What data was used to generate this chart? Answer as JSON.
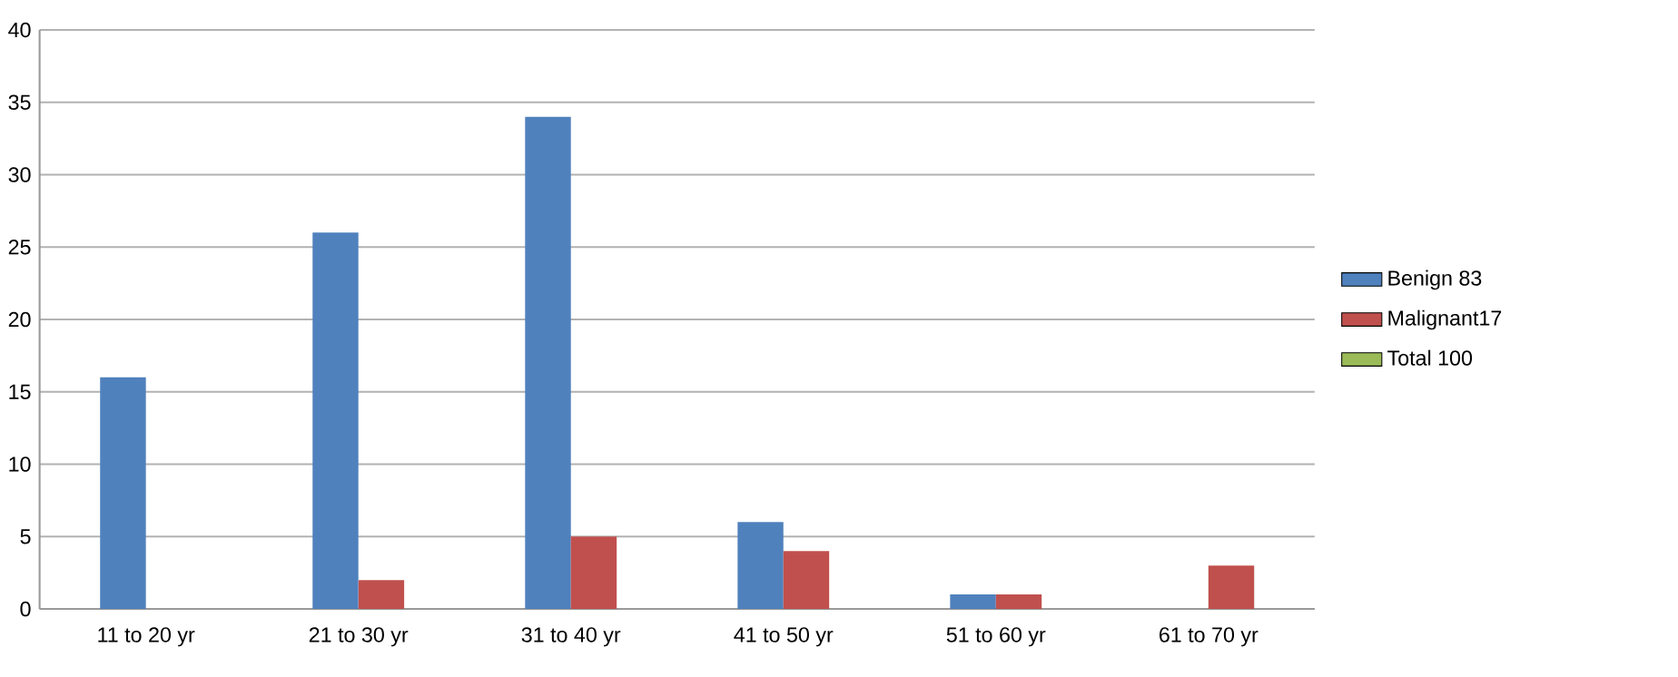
{
  "chart_data": {
    "type": "bar",
    "categories": [
      "11 to 20 yr",
      "21 to 30 yr",
      "31 to 40 yr",
      "41 to 50 yr",
      "51 to 60 yr",
      "61 to 70 yr"
    ],
    "series": [
      {
        "name": "Benign 83",
        "color": "#4f81bd",
        "values": [
          16,
          26,
          34,
          6,
          1,
          null
        ]
      },
      {
        "name": "Malignant17",
        "color": "#c0504d",
        "values": [
          null,
          2,
          5,
          4,
          1,
          3
        ]
      },
      {
        "name": "Total 100",
        "color": "#9bbb59",
        "values": [
          null,
          null,
          null,
          null,
          null,
          null
        ]
      }
    ],
    "ylim": [
      0,
      40
    ],
    "yticks": [
      0,
      5,
      10,
      15,
      20,
      25,
      30,
      35,
      40
    ],
    "grid": "y",
    "legend": "right"
  }
}
